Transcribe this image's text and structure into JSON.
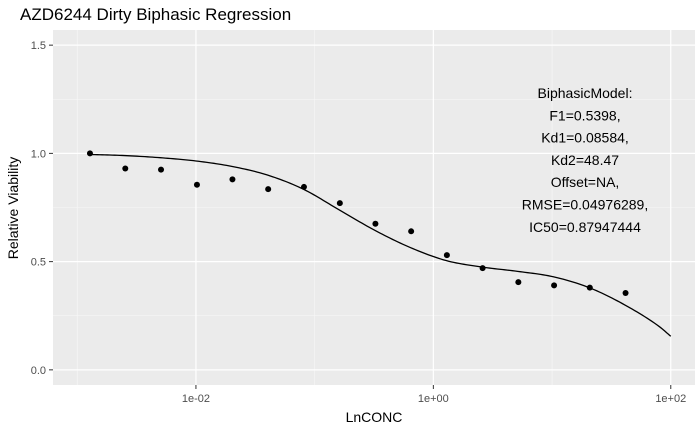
{
  "chart_data": {
    "type": "scatter",
    "title": "AZD6244 Dirty Biphasic Regression",
    "xlabel": "LnCONC",
    "ylabel": "Relative Viability",
    "x_scale": "log10",
    "xlim": [
      0.000625,
      160
    ],
    "ylim": [
      -0.07,
      1.57
    ],
    "x_ticks": [
      0.01,
      1,
      100
    ],
    "x_tick_labels": [
      "1e-02",
      "1e+00",
      "1e+02"
    ],
    "y_ticks": [
      0.0,
      0.5,
      1.0,
      1.5
    ],
    "y_tick_labels": [
      "0.0",
      "0.5",
      "1.0",
      "1.5"
    ],
    "grid": true,
    "points": [
      {
        "x": 0.00128,
        "y": 1.0
      },
      {
        "x": 0.00254,
        "y": 0.93
      },
      {
        "x": 0.00508,
        "y": 0.925
      },
      {
        "x": 0.0102,
        "y": 0.855
      },
      {
        "x": 0.0203,
        "y": 0.88
      },
      {
        "x": 0.0406,
        "y": 0.835
      },
      {
        "x": 0.0813,
        "y": 0.845
      },
      {
        "x": 0.163,
        "y": 0.77
      },
      {
        "x": 0.325,
        "y": 0.675
      },
      {
        "x": 0.65,
        "y": 0.64
      },
      {
        "x": 1.3,
        "y": 0.53
      },
      {
        "x": 2.6,
        "y": 0.47
      },
      {
        "x": 5.2,
        "y": 0.405
      },
      {
        "x": 10.4,
        "y": 0.39
      },
      {
        "x": 20.8,
        "y": 0.38
      },
      {
        "x": 41.6,
        "y": 0.355
      }
    ],
    "fit_curve": {
      "x": [
        0.00128,
        0.0025,
        0.005,
        0.01,
        0.02,
        0.04,
        0.08,
        0.16,
        0.32,
        0.64,
        1.28,
        2.56,
        5.12,
        10.24,
        20.48,
        40.96,
        80,
        100
      ],
      "y": [
        0.995,
        0.99,
        0.98,
        0.965,
        0.94,
        0.9,
        0.835,
        0.74,
        0.645,
        0.565,
        0.505,
        0.475,
        0.455,
        0.43,
        0.38,
        0.3,
        0.2,
        0.155
      ]
    },
    "annotation": [
      "BiphasicModel:",
      "F1=0.5398,",
      "Kd1=0.08584,",
      "Kd2=48.47",
      "Offset=NA,",
      "RMSE=0.04976289,",
      "IC50=0.87947444"
    ]
  }
}
